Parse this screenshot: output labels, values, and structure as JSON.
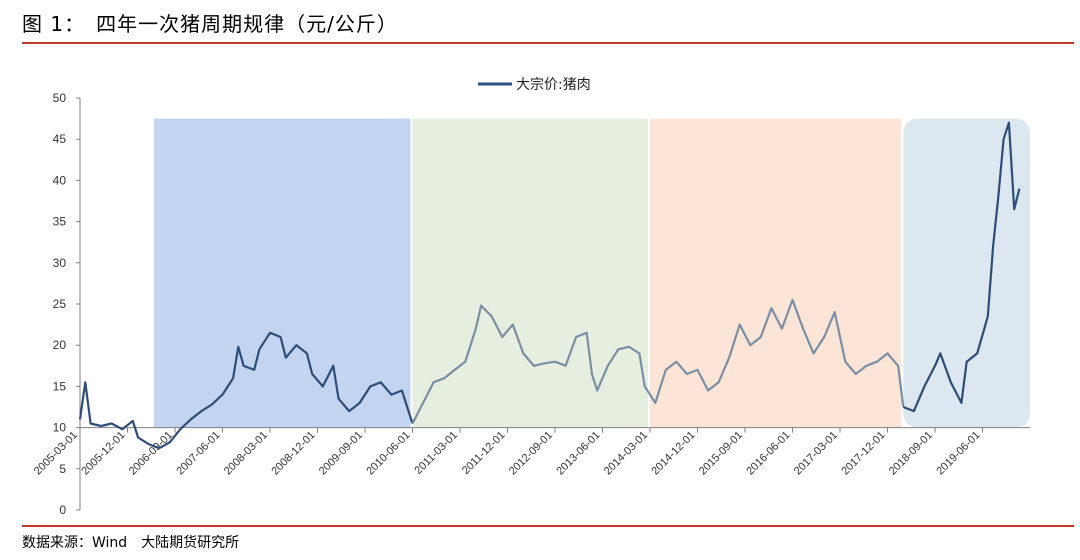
{
  "header": {
    "title": "图 1：　四年一次猪周期规律（元/公斤）"
  },
  "footer": {
    "source": "数据来源：Wind　大陆期货研究所"
  },
  "colors": {
    "series": "#2e4d7a",
    "rule": "#c0392b",
    "band1": "#c2d4f0",
    "band2": "#e6eedf",
    "band3": "#fce5d6",
    "band4": "#dde7ef",
    "axis": "#808080"
  },
  "chart_data": {
    "type": "line",
    "title": "",
    "xlabel": "",
    "ylabel": "",
    "ylim": [
      0,
      50
    ],
    "yticks": [
      0,
      5,
      10,
      15,
      20,
      25,
      30,
      35,
      40,
      45,
      50
    ],
    "xlim": [
      "2005-03",
      "2020-03"
    ],
    "xticks": [
      "2005-03-01",
      "2005-12-01",
      "2006-09-01",
      "2007-06-01",
      "2008-03-01",
      "2008-12-01",
      "2009-09-01",
      "2010-06-01",
      "2011-03-01",
      "2011-12-01",
      "2012-09-01",
      "2013-06-01",
      "2014-03-01",
      "2014-12-01",
      "2015-09-01",
      "2016-06-01",
      "2017-03-01",
      "2017-12-01",
      "2018-09-01",
      "2019-06-01"
    ],
    "legend_position": "top-center",
    "grid": false,
    "bands": [
      {
        "start": "2006-05",
        "end": "2010-06"
      },
      {
        "start": "2010-06",
        "end": "2014-03"
      },
      {
        "start": "2014-03",
        "end": "2018-03"
      },
      {
        "start": "2018-03",
        "end": "2020-03"
      }
    ],
    "series": [
      {
        "name": "大宗价:猪肉",
        "points": [
          [
            "2005-03",
            11
          ],
          [
            "2005-04",
            15.5
          ],
          [
            "2005-05",
            10.5
          ],
          [
            "2005-07",
            10.2
          ],
          [
            "2005-09",
            10.5
          ],
          [
            "2005-11",
            9.8
          ],
          [
            "2006-01",
            10.8
          ],
          [
            "2006-02",
            8.8
          ],
          [
            "2006-04",
            8.0
          ],
          [
            "2006-06",
            7.5
          ],
          [
            "2006-08",
            8.2
          ],
          [
            "2006-10",
            9.8
          ],
          [
            "2006-12",
            11.0
          ],
          [
            "2007-02",
            12.0
          ],
          [
            "2007-04",
            12.8
          ],
          [
            "2007-06",
            14.0
          ],
          [
            "2007-08",
            16.0
          ],
          [
            "2007-09",
            19.8
          ],
          [
            "2007-10",
            17.5
          ],
          [
            "2007-12",
            17.0
          ],
          [
            "2008-01",
            19.5
          ],
          [
            "2008-03",
            21.5
          ],
          [
            "2008-05",
            21.0
          ],
          [
            "2008-06",
            18.5
          ],
          [
            "2008-08",
            20.0
          ],
          [
            "2008-10",
            19.0
          ],
          [
            "2008-11",
            16.5
          ],
          [
            "2009-01",
            15.0
          ],
          [
            "2009-03",
            17.5
          ],
          [
            "2009-04",
            13.5
          ],
          [
            "2009-06",
            12.0
          ],
          [
            "2009-08",
            13.0
          ],
          [
            "2009-10",
            15.0
          ],
          [
            "2009-12",
            15.5
          ],
          [
            "2010-02",
            14.0
          ],
          [
            "2010-04",
            14.5
          ],
          [
            "2010-06",
            10.5
          ],
          [
            "2010-08",
            13.0
          ],
          [
            "2010-10",
            15.5
          ],
          [
            "2010-12",
            16.0
          ],
          [
            "2011-02",
            17.0
          ],
          [
            "2011-04",
            18.0
          ],
          [
            "2011-06",
            22.0
          ],
          [
            "2011-07",
            24.8
          ],
          [
            "2011-09",
            23.5
          ],
          [
            "2011-11",
            21.0
          ],
          [
            "2012-01",
            22.5
          ],
          [
            "2012-03",
            19.0
          ],
          [
            "2012-05",
            17.5
          ],
          [
            "2012-07",
            17.8
          ],
          [
            "2012-09",
            18.0
          ],
          [
            "2012-11",
            17.5
          ],
          [
            "2013-01",
            21.0
          ],
          [
            "2013-03",
            21.5
          ],
          [
            "2013-04",
            16.5
          ],
          [
            "2013-05",
            14.5
          ],
          [
            "2013-07",
            17.5
          ],
          [
            "2013-09",
            19.5
          ],
          [
            "2013-11",
            19.8
          ],
          [
            "2014-01",
            19.0
          ],
          [
            "2014-02",
            15.0
          ],
          [
            "2014-04",
            13.0
          ],
          [
            "2014-06",
            17.0
          ],
          [
            "2014-08",
            18.0
          ],
          [
            "2014-10",
            16.5
          ],
          [
            "2014-12",
            17.0
          ],
          [
            "2015-02",
            14.5
          ],
          [
            "2015-04",
            15.5
          ],
          [
            "2015-06",
            18.5
          ],
          [
            "2015-08",
            22.5
          ],
          [
            "2015-10",
            20.0
          ],
          [
            "2015-12",
            21.0
          ],
          [
            "2016-02",
            24.5
          ],
          [
            "2016-04",
            22.0
          ],
          [
            "2016-06",
            25.5
          ],
          [
            "2016-08",
            22.0
          ],
          [
            "2016-10",
            19.0
          ],
          [
            "2016-12",
            21.0
          ],
          [
            "2017-02",
            24.0
          ],
          [
            "2017-04",
            18.0
          ],
          [
            "2017-06",
            16.5
          ],
          [
            "2017-08",
            17.5
          ],
          [
            "2017-10",
            18.0
          ],
          [
            "2017-12",
            19.0
          ],
          [
            "2018-02",
            17.5
          ],
          [
            "2018-03",
            12.5
          ],
          [
            "2018-05",
            12.0
          ],
          [
            "2018-07",
            15.0
          ],
          [
            "2018-09",
            17.5
          ],
          [
            "2018-10",
            19.0
          ],
          [
            "2018-12",
            15.5
          ],
          [
            "2019-02",
            13.0
          ],
          [
            "2019-03",
            18.0
          ],
          [
            "2019-05",
            19.0
          ],
          [
            "2019-07",
            23.5
          ],
          [
            "2019-08",
            32.0
          ],
          [
            "2019-09",
            38.0
          ],
          [
            "2019-10",
            45.0
          ],
          [
            "2019-11",
            47.0
          ],
          [
            "2019-12",
            36.5
          ],
          [
            "2020-01",
            39.0
          ]
        ]
      }
    ]
  }
}
